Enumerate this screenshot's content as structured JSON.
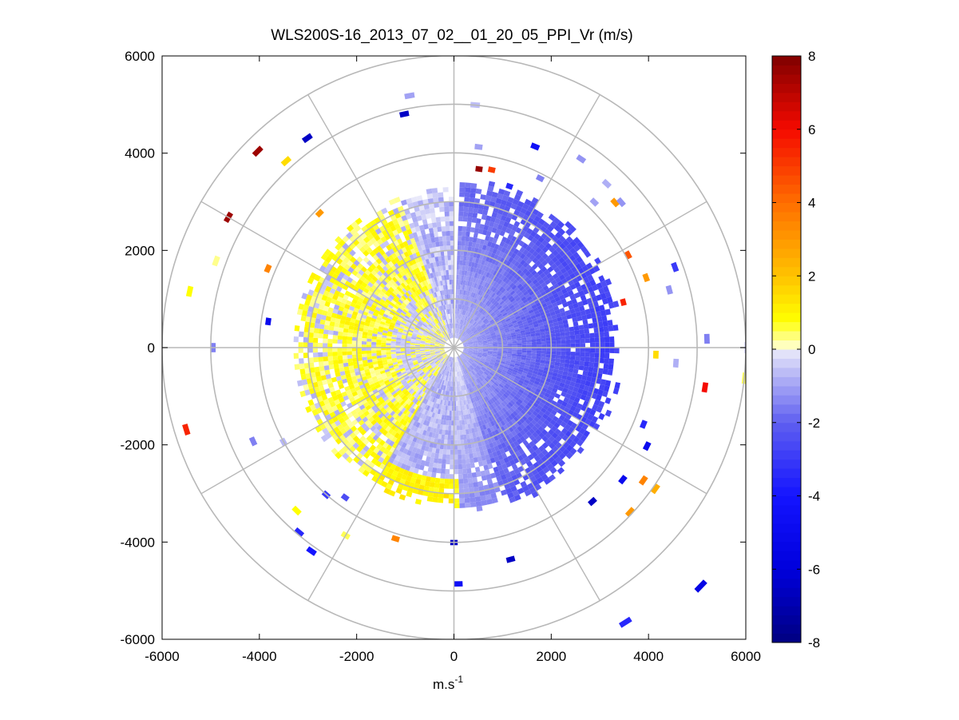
{
  "chart_data": {
    "type": "heatmap",
    "subtype": "polar-ppi",
    "title": "WLS200S-16_2013_07_02__01_20_05_PPI_Vr (m/s)",
    "xlabel": "m.s",
    "xlabel_superscript": "-1",
    "ylabel": "",
    "xlim": [
      -6000,
      6000
    ],
    "ylim": [
      -6000,
      6000
    ],
    "x_ticks": [
      "-6000",
      "-4000",
      "-2000",
      "0",
      "2000",
      "4000",
      "6000"
    ],
    "y_ticks": [
      "6000",
      "4000",
      "2000",
      "0",
      "-2000",
      "-4000",
      "-6000"
    ],
    "grid_ring_radii_m": [
      1000,
      2000,
      3000,
      4000,
      5000,
      6000
    ],
    "grid_spoke_angles_deg": [
      0,
      30,
      60,
      90,
      120,
      150
    ],
    "missing_sector_azimuth_deg": [
      -1,
      3
    ],
    "colorbar": {
      "label": "Vr (m/s)",
      "range": [
        -8,
        8
      ],
      "ticks": [
        "8",
        "6",
        "4",
        "2",
        "0",
        "-2",
        "-4",
        "-6",
        "-8"
      ],
      "colormap": "blue-white-yellow-red"
    },
    "field_model": {
      "description": "Dense radial velocity returns out to ~3300 m; sparse returns beyond. Eastern half negative (blue), western half positive near zero (yellow).",
      "dense_range_m": [
        200,
        3300
      ],
      "east_min_velocity": -2.8,
      "west_max_velocity": 0.8
    },
    "sparse_returns": [
      {
        "r": 5200,
        "az": 350,
        "v": -1.0
      },
      {
        "r": 4850,
        "az": 348,
        "v": -6.5
      },
      {
        "r": 4950,
        "az": 5,
        "v": -0.6
      },
      {
        "r": 4400,
        "az": 22,
        "v": -4.5
      },
      {
        "r": 4620,
        "az": 34,
        "v": -1.2
      },
      {
        "r": 4550,
        "az": 43,
        "v": -0.8
      },
      {
        "r": 4100,
        "az": 7,
        "v": -1.0
      },
      {
        "r": 3650,
        "az": 8,
        "v": 7.6
      },
      {
        "r": 3680,
        "az": 12,
        "v": 5.0
      },
      {
        "r": 3450,
        "az": 19,
        "v": -3.5
      },
      {
        "r": 3850,
        "az": 27,
        "v": -1.5
      },
      {
        "r": 4100,
        "az": 44,
        "v": -1.0
      },
      {
        "r": 4400,
        "az": 48,
        "v": 3.0
      },
      {
        "r": 4500,
        "az": 49,
        "v": -1.2
      },
      {
        "r": 4000,
        "az": 62,
        "v": 4.5
      },
      {
        "r": 4150,
        "az": 70,
        "v": 3.0
      },
      {
        "r": 4780,
        "az": 70,
        "v": -3.0
      },
      {
        "r": 4530,
        "az": 75,
        "v": -1.2
      },
      {
        "r": 3550,
        "az": 75,
        "v": 5.5
      },
      {
        "r": 5150,
        "az": 88,
        "v": -1.5
      },
      {
        "r": 5980,
        "az": 90,
        "v": -1.0
      },
      {
        "r": 5170,
        "az": 99,
        "v": 6.0
      },
      {
        "r": 5960,
        "az": 96,
        "v": 0.5
      },
      {
        "r": 4100,
        "az": 92,
        "v": 1.5
      },
      {
        "r": 4520,
        "az": 94,
        "v": -0.8
      },
      {
        "r": 4150,
        "az": 112,
        "v": -3.5
      },
      {
        "r": 4400,
        "az": 117,
        "v": -5.0
      },
      {
        "r": 4350,
        "az": 128,
        "v": -5.0
      },
      {
        "r": 4700,
        "az": 125,
        "v": 3.5
      },
      {
        "r": 5000,
        "az": 125,
        "v": 2.5
      },
      {
        "r": 4900,
        "az": 133,
        "v": 3.0
      },
      {
        "r": 4200,
        "az": 138,
        "v": -6.5
      },
      {
        "r": 7000,
        "az": 134,
        "v": -5.5
      },
      {
        "r": 6600,
        "az": 148,
        "v": -3.5
      },
      {
        "r": 4450,
        "az": 165,
        "v": -6.5
      },
      {
        "r": 4800,
        "az": 179,
        "v": -4.5
      },
      {
        "r": 3950,
        "az": 180,
        "v": -6.5
      },
      {
        "r": 4050,
        "az": 197,
        "v": 3.5
      },
      {
        "r": 5050,
        "az": 215,
        "v": -4.0
      },
      {
        "r": 4900,
        "az": 220,
        "v": -3.5
      },
      {
        "r": 4400,
        "az": 210,
        "v": 0.5
      },
      {
        "r": 4600,
        "az": 224,
        "v": 0.8
      },
      {
        "r": 3750,
        "az": 216,
        "v": -2.5
      },
      {
        "r": 3950,
        "az": 221,
        "v": -3.0
      },
      {
        "r": 5700,
        "az": 253,
        "v": 5.5
      },
      {
        "r": 4500,
        "az": 245,
        "v": -1.5
      },
      {
        "r": 3950,
        "az": 241,
        "v": -0.7
      },
      {
        "r": 4900,
        "az": 270,
        "v": -1.5
      },
      {
        "r": 5500,
        "az": 282,
        "v": 0.8
      },
      {
        "r": 5150,
        "az": 290,
        "v": 0.3
      },
      {
        "r": 3800,
        "az": 278,
        "v": -5.0
      },
      {
        "r": 4100,
        "az": 293,
        "v": 3.5
      },
      {
        "r": 5300,
        "az": 300,
        "v": 7.5
      },
      {
        "r": 5650,
        "az": 315,
        "v": 7.5
      },
      {
        "r": 5100,
        "az": 318,
        "v": 1.5
      },
      {
        "r": 3850,
        "az": 315,
        "v": 3.0
      },
      {
        "r": 5200,
        "az": 325,
        "v": -6.5
      }
    ]
  }
}
